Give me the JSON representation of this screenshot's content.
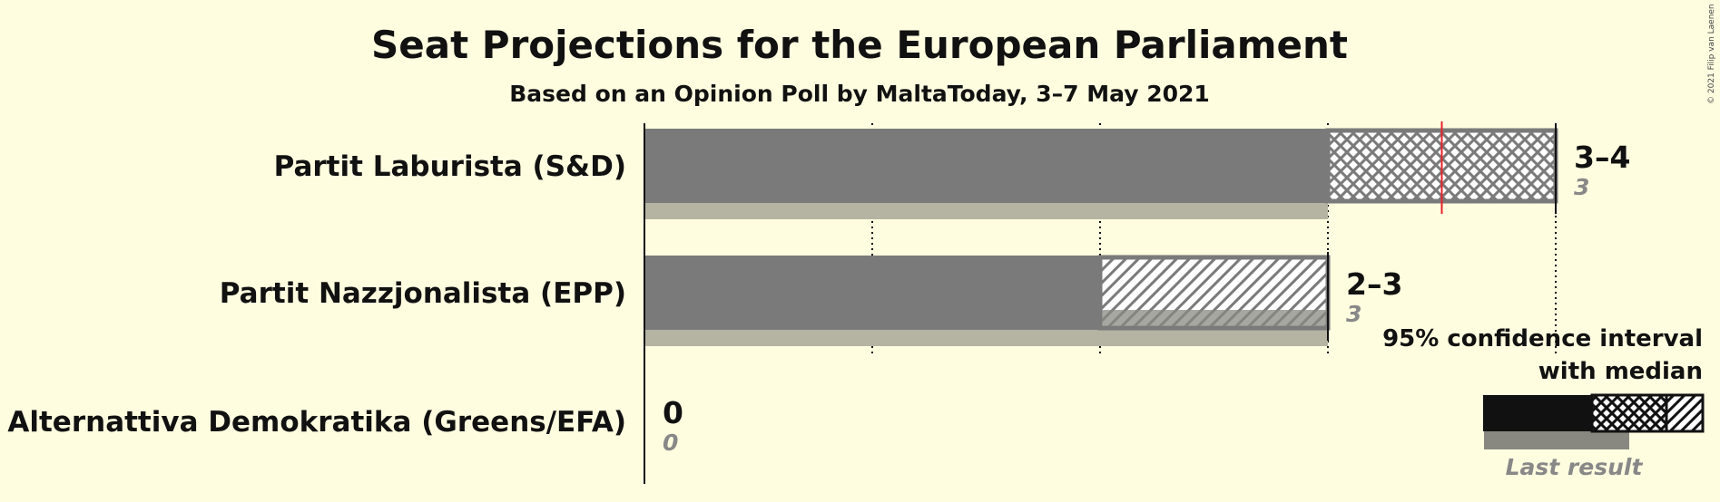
{
  "title": "Seat Projections for the European Parliament",
  "subtitle": "Based on an Opinion Poll by MaltaToday, 3–7 May 2021",
  "copyright": "© 2021 Filip van Laenen",
  "legend": {
    "line1": "95% confidence interval",
    "line2": "with median",
    "last_result": "Last result"
  },
  "colors": {
    "bar": "#7a7a7a",
    "last_result": "#b5b3a2",
    "median": "#e8222a",
    "background": "#fffde0",
    "legend_solid": "#111111"
  },
  "chart_data": {
    "type": "bar",
    "title": "Seat Projections for the European Parliament",
    "subtitle": "Based on an Opinion Poll by MaltaToday, 3–7 May 2021",
    "xlim": [
      0,
      4
    ],
    "parties": [
      {
        "name": "Partit Laburista (S&D)",
        "low": 3,
        "high": 4,
        "median": 3.5,
        "range_label": "3–4",
        "last_result": 3,
        "last_label": "3",
        "interval": "crosshatch"
      },
      {
        "name": "Partit Nazzjonalista (EPP)",
        "low": 2,
        "high": 3,
        "median": null,
        "range_label": "2–3",
        "last_result": 3,
        "last_label": "3",
        "interval": "diagonal"
      },
      {
        "name": "Alternattiva Demokratika (Greens/EFA)",
        "low": 0,
        "high": 0,
        "median": null,
        "range_label": "0",
        "last_result": 0,
        "last_label": "0",
        "interval": "none"
      }
    ]
  }
}
